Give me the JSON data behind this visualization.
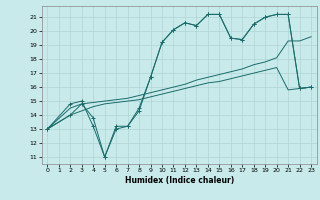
{
  "xlabel": "Humidex (Indice chaleur)",
  "xlim": [
    -0.5,
    23.5
  ],
  "ylim": [
    10.5,
    21.8
  ],
  "yticks": [
    11,
    12,
    13,
    14,
    15,
    16,
    17,
    18,
    19,
    20,
    21
  ],
  "xticks": [
    0,
    1,
    2,
    3,
    4,
    5,
    6,
    7,
    8,
    9,
    10,
    11,
    12,
    13,
    14,
    15,
    16,
    17,
    18,
    19,
    20,
    21,
    22,
    23
  ],
  "bg_color": "#c8eaea",
  "grid_color": "#b0d4d4",
  "line_color": "#1a6b6b",
  "line1_x": [
    0,
    2,
    3,
    4,
    5,
    6,
    7,
    8,
    9,
    10,
    11,
    12,
    13,
    14,
    15,
    16,
    17,
    18,
    19,
    20,
    21,
    22,
    23
  ],
  "line1_y": [
    13,
    14,
    14.8,
    13.8,
    11,
    13,
    13.2,
    14.5,
    16.7,
    19.2,
    20.1,
    20.6,
    20.4,
    21.2,
    21.2,
    19.5,
    19.4,
    20.5,
    21.0,
    21.2,
    21.2,
    15.9,
    16.0
  ],
  "line2_x": [
    0,
    2,
    3,
    4,
    5,
    6,
    7,
    8,
    9,
    10,
    11,
    12,
    13,
    14,
    15,
    16,
    17,
    18,
    19,
    20,
    21,
    22,
    23
  ],
  "line2_y": [
    13,
    14.8,
    15,
    13.2,
    11.0,
    13.2,
    13.2,
    14.3,
    16.7,
    19.2,
    20.1,
    20.6,
    20.4,
    21.2,
    21.2,
    19.5,
    19.4,
    20.5,
    21.0,
    21.2,
    21.2,
    15.9,
    16.0
  ],
  "line3_x": [
    0,
    2,
    3,
    4,
    5,
    6,
    7,
    8,
    9,
    10,
    11,
    12,
    13,
    14,
    15,
    16,
    17,
    18,
    19,
    20,
    21,
    22,
    23
  ],
  "line3_y": [
    13,
    14.5,
    14.8,
    14.9,
    15.0,
    15.1,
    15.2,
    15.4,
    15.6,
    15.8,
    16.0,
    16.2,
    16.5,
    16.7,
    16.9,
    17.1,
    17.3,
    17.6,
    17.8,
    18.1,
    19.3,
    19.3,
    19.6
  ],
  "line4_x": [
    0,
    2,
    3,
    4,
    5,
    6,
    7,
    8,
    9,
    10,
    11,
    12,
    13,
    14,
    15,
    16,
    17,
    18,
    19,
    20,
    21,
    22,
    23
  ],
  "line4_y": [
    13,
    14.0,
    14.3,
    14.6,
    14.8,
    14.9,
    15.0,
    15.1,
    15.3,
    15.5,
    15.7,
    15.9,
    16.1,
    16.3,
    16.4,
    16.6,
    16.8,
    17.0,
    17.2,
    17.4,
    15.8,
    15.9,
    16.0
  ]
}
